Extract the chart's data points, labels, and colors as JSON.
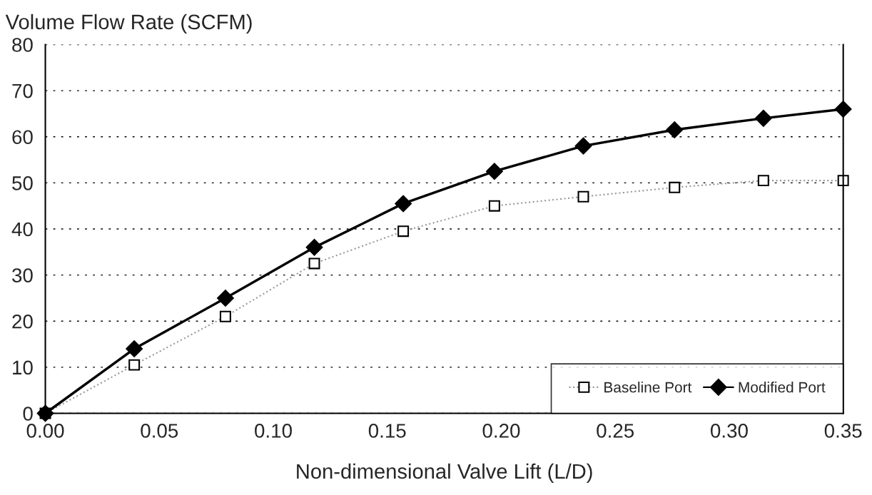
{
  "chart_data": {
    "type": "line",
    "ylabel": "Volume Flow Rate (SCFM)",
    "xlabel": "Non-dimensional Valve Lift (L/D)",
    "x": [
      0,
      0.039,
      0.079,
      0.118,
      0.157,
      0.197,
      0.236,
      0.276,
      0.315,
      0.35
    ],
    "series": [
      {
        "name": "Baseline Port",
        "color": "#999999",
        "marker": "square",
        "line_style": "dotted",
        "values": [
          0,
          10.5,
          21,
          32.5,
          39.5,
          45,
          47,
          49,
          50.5,
          50.5
        ]
      },
      {
        "name": "Modified Port",
        "color": "#000000",
        "marker": "diamond",
        "line_style": "solid",
        "values": [
          0,
          14,
          25,
          36,
          45.5,
          52.5,
          58,
          61.5,
          64,
          66
        ]
      }
    ],
    "xlim": [
      0,
      0.35
    ],
    "xticks": [
      {
        "value": 0,
        "label": "0.00"
      },
      0.05,
      {
        "value": 0.1,
        "label": "0.10"
      },
      0.15,
      {
        "value": 0.2,
        "label": "0.20"
      },
      0.25,
      {
        "value": 0.3,
        "label": "0.30"
      },
      0.35
    ],
    "ylim": [
      0,
      80
    ],
    "yticks": [
      0,
      10,
      20,
      30,
      40,
      50,
      60,
      70,
      80
    ],
    "grid": "y",
    "legend": "bottom right"
  }
}
